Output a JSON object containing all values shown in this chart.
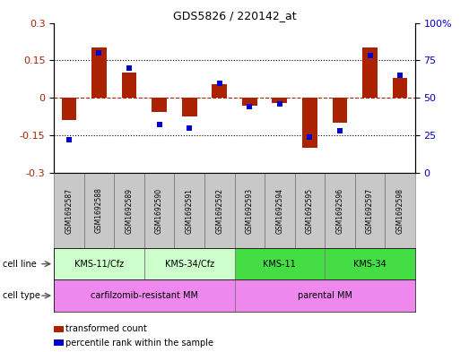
{
  "title": "GDS5826 / 220142_at",
  "samples": [
    "GSM1692587",
    "GSM1692588",
    "GSM1692589",
    "GSM1692590",
    "GSM1692591",
    "GSM1692592",
    "GSM1692593",
    "GSM1692594",
    "GSM1692595",
    "GSM1692596",
    "GSM1692597",
    "GSM1692598"
  ],
  "transformed_count": [
    -0.09,
    0.2,
    0.1,
    -0.055,
    -0.075,
    0.055,
    -0.03,
    -0.02,
    -0.2,
    -0.1,
    0.2,
    0.08
  ],
  "percentile_rank": [
    22,
    80,
    70,
    32,
    30,
    60,
    44,
    46,
    24,
    28,
    78,
    65
  ],
  "cell_line_groups": [
    {
      "label": "KMS-11/Cfz",
      "start": 0,
      "end": 2,
      "color": "#ccffcc"
    },
    {
      "label": "KMS-34/Cfz",
      "start": 3,
      "end": 5,
      "color": "#ccffcc"
    },
    {
      "label": "KMS-11",
      "start": 6,
      "end": 8,
      "color": "#44dd44"
    },
    {
      "label": "KMS-34",
      "start": 9,
      "end": 11,
      "color": "#44dd44"
    }
  ],
  "cell_type_groups": [
    {
      "label": "carfilzomib-resistant MM",
      "start": 0,
      "end": 5,
      "color": "#ee88ee"
    },
    {
      "label": "parental MM",
      "start": 6,
      "end": 11,
      "color": "#ee88ee"
    }
  ],
  "bar_color": "#aa2200",
  "dot_color": "#0000cc",
  "ylim": [
    -0.3,
    0.3
  ],
  "y2lim": [
    0,
    100
  ],
  "yticks": [
    -0.3,
    -0.15,
    0.0,
    0.15,
    0.3
  ],
  "y2ticks": [
    0,
    25,
    50,
    75,
    100
  ],
  "hlines": [
    -0.15,
    0.0,
    0.15
  ],
  "sample_bg": "#c8c8c8",
  "legend_items": [
    {
      "label": "transformed count",
      "color": "#aa2200"
    },
    {
      "label": "percentile rank within the sample",
      "color": "#0000cc"
    }
  ],
  "fig_width": 5.23,
  "fig_height": 3.93,
  "dpi": 100
}
